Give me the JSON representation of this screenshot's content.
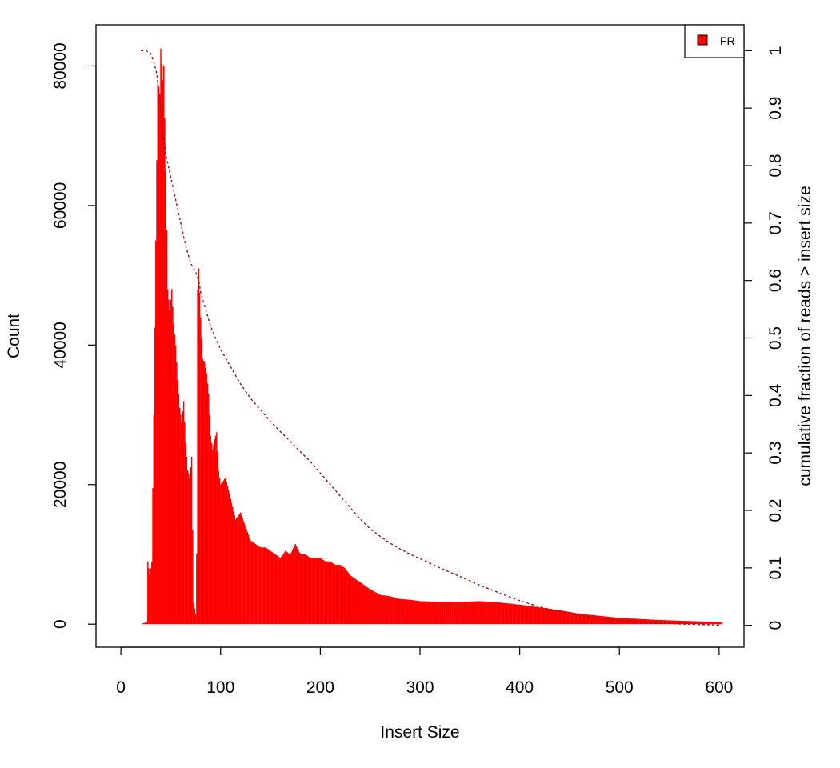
{
  "chart_data": {
    "type": "bar",
    "xlabel": "Insert Size",
    "ylabel": "Count",
    "y2label": "cumulative fraction of reads > insert size",
    "xlim": [
      -25,
      625
    ],
    "ylim": [
      -3300,
      85900
    ],
    "y2lim": [
      -0.038,
      1.045
    ],
    "xticks": [
      0,
      100,
      200,
      300,
      400,
      500,
      600
    ],
    "yticks": [
      0,
      20000,
      40000,
      60000,
      80000
    ],
    "y2ticks": [
      0,
      0.1,
      0.2,
      0.3,
      0.4,
      0.5,
      0.6,
      0.7,
      0.8,
      0.9,
      1
    ],
    "legend": {
      "position": "top-right",
      "entries": [
        {
          "label": "FR",
          "color": "#ff0000"
        }
      ]
    },
    "colors": {
      "bars": "#ff0000",
      "cumulative_line": "#8b1a1a"
    },
    "series": [
      {
        "name": "FR",
        "kind": "histogram",
        "points": [
          [
            20,
            0
          ],
          [
            26,
            300
          ],
          [
            27,
            9000
          ],
          [
            29,
            7000
          ],
          [
            31,
            9000
          ],
          [
            33,
            30000
          ],
          [
            35,
            55000
          ],
          [
            37,
            78000
          ],
          [
            39,
            76000
          ],
          [
            40,
            82500
          ],
          [
            42,
            78000
          ],
          [
            43,
            80000
          ],
          [
            45,
            65000
          ],
          [
            47,
            48000
          ],
          [
            49,
            45000
          ],
          [
            51,
            48000
          ],
          [
            53,
            43000
          ],
          [
            55,
            40000
          ],
          [
            57,
            35000
          ],
          [
            59,
            31000
          ],
          [
            61,
            29000
          ],
          [
            63,
            32000
          ],
          [
            65,
            26000
          ],
          [
            67,
            22000
          ],
          [
            69,
            21000
          ],
          [
            71,
            24000
          ],
          [
            73,
            3000
          ],
          [
            75,
            1500
          ],
          [
            76,
            10000
          ],
          [
            77,
            48000
          ],
          [
            78,
            51000
          ],
          [
            80,
            44000
          ],
          [
            82,
            38000
          ],
          [
            84,
            37500
          ],
          [
            86,
            36000
          ],
          [
            88,
            33000
          ],
          [
            90,
            27000
          ],
          [
            92,
            25000
          ],
          [
            94,
            26500
          ],
          [
            96,
            27500
          ],
          [
            98,
            22000
          ],
          [
            100,
            20000
          ],
          [
            105,
            21000
          ],
          [
            110,
            18000
          ],
          [
            115,
            15000
          ],
          [
            120,
            16000
          ],
          [
            125,
            14000
          ],
          [
            130,
            12000
          ],
          [
            135,
            11500
          ],
          [
            140,
            11000
          ],
          [
            145,
            11000
          ],
          [
            150,
            10500
          ],
          [
            155,
            10000
          ],
          [
            160,
            9500
          ],
          [
            165,
            10500
          ],
          [
            170,
            10000
          ],
          [
            175,
            11500
          ],
          [
            180,
            10000
          ],
          [
            185,
            10000
          ],
          [
            190,
            9500
          ],
          [
            195,
            9500
          ],
          [
            200,
            9500
          ],
          [
            205,
            9000
          ],
          [
            210,
            9000
          ],
          [
            215,
            8500
          ],
          [
            220,
            8500
          ],
          [
            225,
            8000
          ],
          [
            230,
            7000
          ],
          [
            240,
            6000
          ],
          [
            250,
            5000
          ],
          [
            260,
            4200
          ],
          [
            270,
            4000
          ],
          [
            280,
            3600
          ],
          [
            290,
            3500
          ],
          [
            300,
            3300
          ],
          [
            320,
            3200
          ],
          [
            340,
            3200
          ],
          [
            360,
            3300
          ],
          [
            380,
            3100
          ],
          [
            400,
            2800
          ],
          [
            420,
            2400
          ],
          [
            440,
            2000
          ],
          [
            460,
            1500
          ],
          [
            480,
            1200
          ],
          [
            500,
            900
          ],
          [
            520,
            750
          ],
          [
            540,
            600
          ],
          [
            560,
            500
          ],
          [
            580,
            400
          ],
          [
            600,
            300
          ],
          [
            603,
            200
          ]
        ]
      },
      {
        "name": "cumulative fraction of reads > insert size",
        "kind": "cumulative",
        "points": [
          [
            20,
            1.0
          ],
          [
            25,
            1.0
          ],
          [
            30,
            0.995
          ],
          [
            33,
            0.98
          ],
          [
            36,
            0.96
          ],
          [
            38,
            0.93
          ],
          [
            40,
            0.9
          ],
          [
            42,
            0.86
          ],
          [
            45,
            0.82
          ],
          [
            50,
            0.78
          ],
          [
            55,
            0.74
          ],
          [
            60,
            0.7
          ],
          [
            65,
            0.66
          ],
          [
            70,
            0.63
          ],
          [
            75,
            0.615
          ],
          [
            78,
            0.6
          ],
          [
            80,
            0.58
          ],
          [
            85,
            0.55
          ],
          [
            90,
            0.52
          ],
          [
            95,
            0.5
          ],
          [
            100,
            0.48
          ],
          [
            110,
            0.45
          ],
          [
            120,
            0.42
          ],
          [
            130,
            0.395
          ],
          [
            140,
            0.375
          ],
          [
            150,
            0.355
          ],
          [
            160,
            0.337
          ],
          [
            170,
            0.32
          ],
          [
            180,
            0.302
          ],
          [
            190,
            0.285
          ],
          [
            200,
            0.265
          ],
          [
            210,
            0.245
          ],
          [
            220,
            0.225
          ],
          [
            230,
            0.205
          ],
          [
            240,
            0.185
          ],
          [
            250,
            0.168
          ],
          [
            260,
            0.155
          ],
          [
            270,
            0.143
          ],
          [
            280,
            0.133
          ],
          [
            290,
            0.124
          ],
          [
            300,
            0.116
          ],
          [
            320,
            0.1
          ],
          [
            340,
            0.085
          ],
          [
            360,
            0.07
          ],
          [
            380,
            0.056
          ],
          [
            400,
            0.043
          ],
          [
            420,
            0.032
          ],
          [
            440,
            0.024
          ],
          [
            460,
            0.017
          ],
          [
            480,
            0.012
          ],
          [
            500,
            0.008
          ],
          [
            520,
            0.0055
          ],
          [
            540,
            0.0038
          ],
          [
            560,
            0.0025
          ],
          [
            580,
            0.0015
          ],
          [
            600,
            0.0005
          ],
          [
            603,
            0.0
          ]
        ]
      }
    ]
  }
}
